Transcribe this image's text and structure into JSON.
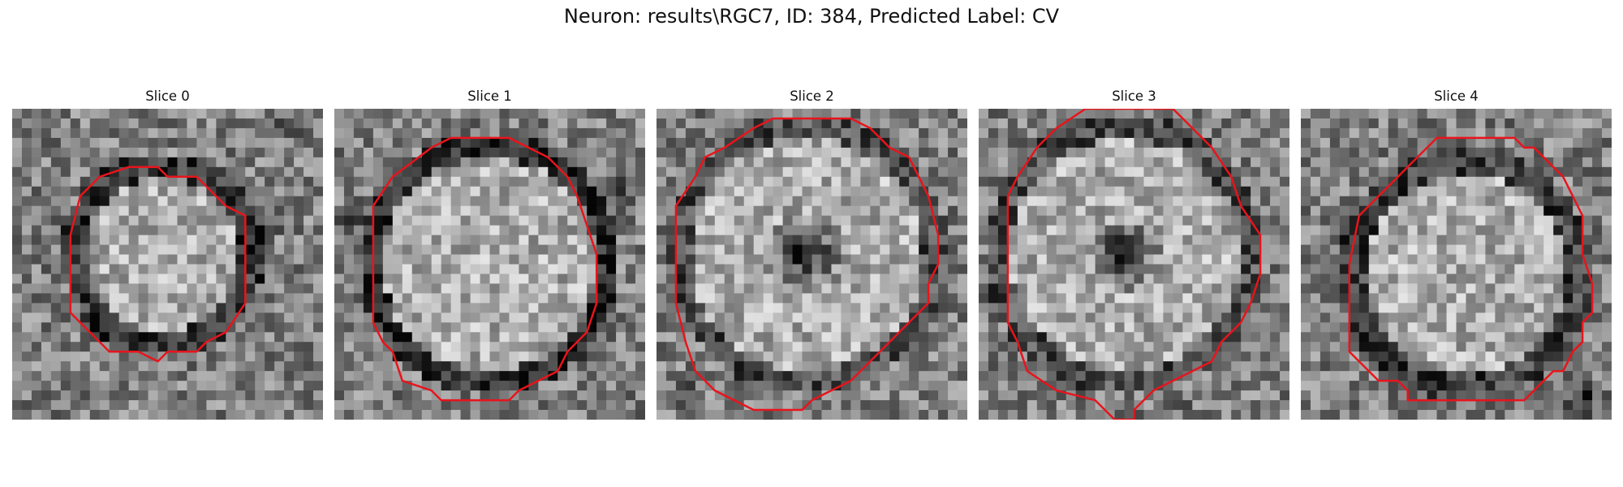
{
  "figure": {
    "title": "Neuron: results\\RGC7, ID: 384, Predicted Label: CV"
  },
  "colors": {
    "contour": "#e8141c",
    "background": "#ffffff"
  },
  "panels": [
    {
      "title": "Slice 0"
    },
    {
      "title": "Slice 1"
    },
    {
      "title": "Slice 2"
    },
    {
      "title": "Slice 3"
    },
    {
      "title": "Slice 4"
    }
  ]
}
